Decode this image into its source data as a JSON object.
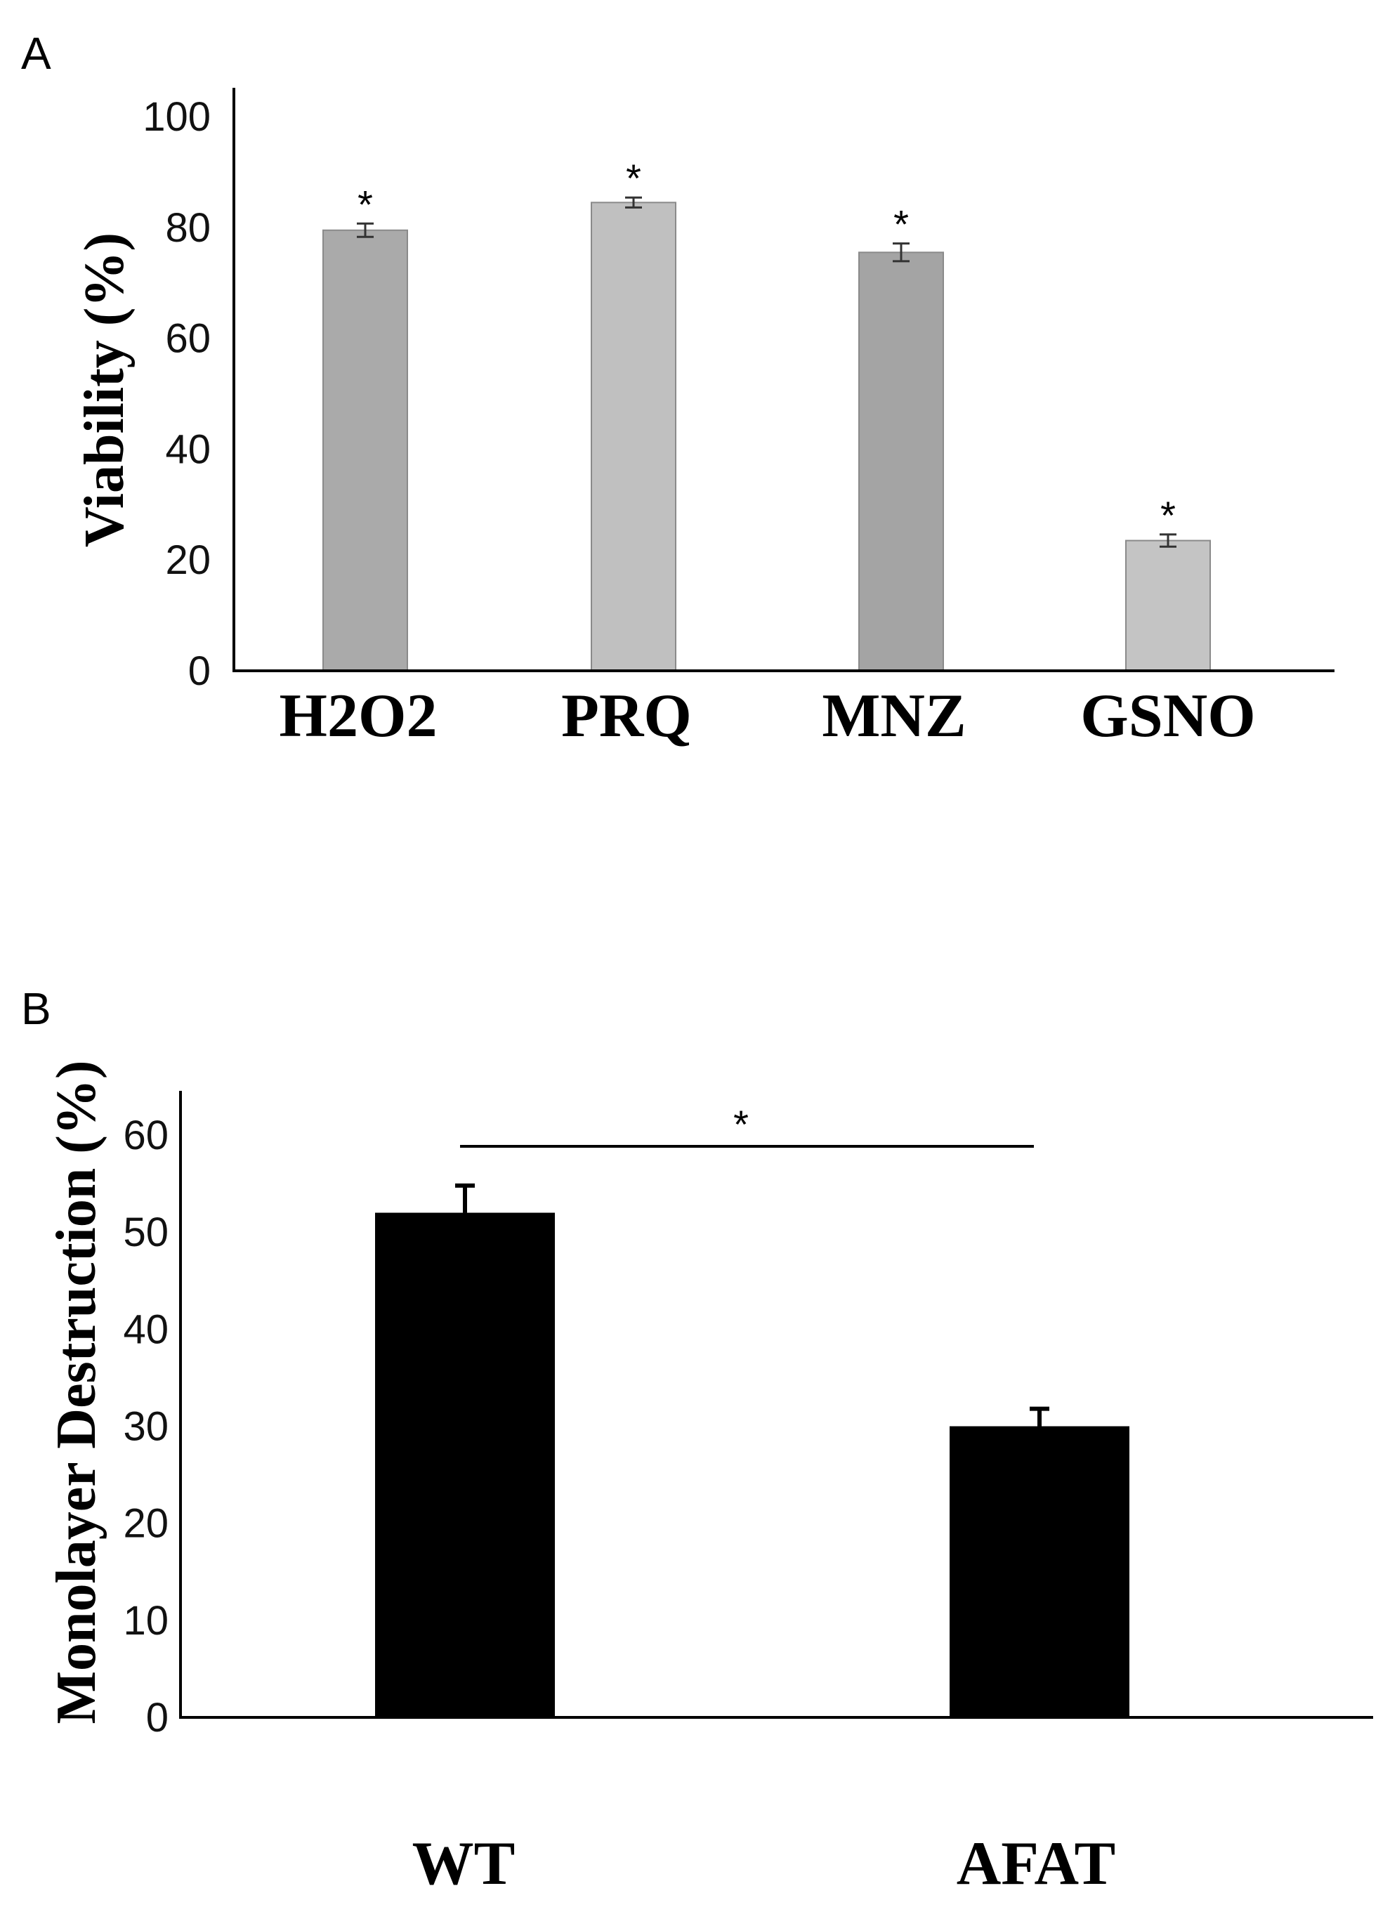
{
  "chart_data": [
    {
      "type": "bar",
      "panel_label": "A",
      "ylabel": "Viability (%)",
      "categories": [
        "H2O2",
        "PRQ",
        "MNZ",
        "GSNO"
      ],
      "values": [
        79.5,
        84.5,
        75.5,
        23.5
      ],
      "errors": [
        1.2,
        0.9,
        1.6,
        1.1
      ],
      "colors": [
        "#aaaaaa",
        "#c0c0c0",
        "#a4a4a4",
        "#c4c4c4"
      ],
      "annotations": [
        "*",
        "*",
        "*",
        "*"
      ],
      "ylim": [
        0,
        100
      ],
      "yticks": [
        "0",
        "20",
        "40",
        "60",
        "80",
        "100"
      ],
      "grid": false,
      "legend": "none"
    },
    {
      "type": "bar",
      "panel_label": "B",
      "ylabel": "Monolayer Destruction (%)",
      "categories": [
        "WT",
        "AFAT"
      ],
      "values": [
        52,
        30
      ],
      "errors": [
        2.8,
        1.8
      ],
      "colors": [
        "#000000",
        "#000000"
      ],
      "significance": {
        "from": "WT",
        "to": "AFAT",
        "label": "*"
      },
      "ylim": [
        0,
        60
      ],
      "yticks": [
        "0",
        "10",
        "20",
        "30",
        "40",
        "50",
        "60"
      ],
      "grid": false,
      "legend": "none"
    }
  ]
}
